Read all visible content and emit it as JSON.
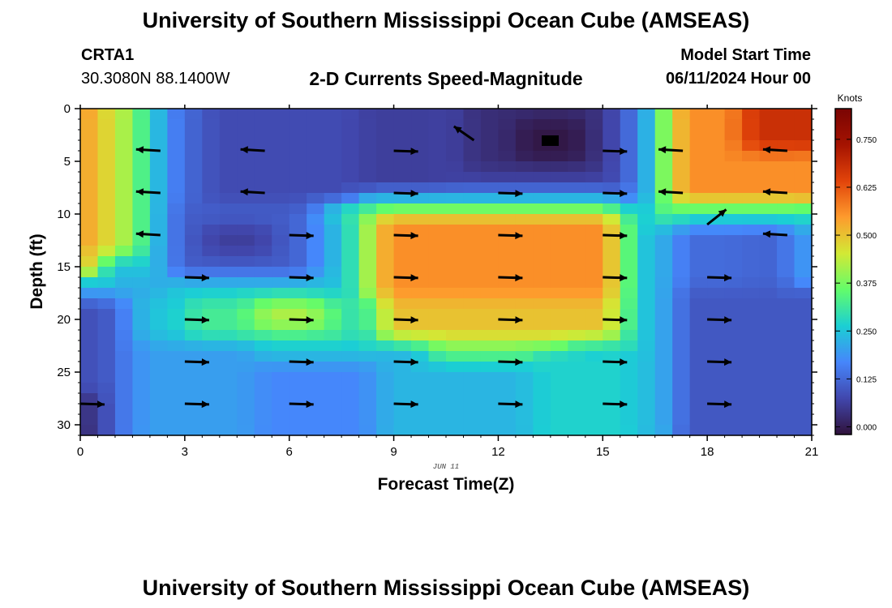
{
  "header": {
    "title": "University of Southern Mississippi Ocean Cube (AMSEAS)",
    "station": "CRTA1",
    "coords": "30.3080N  88.1400W",
    "subtitle": "2-D Currents Speed-Magnitude",
    "model_start_label": "Model Start Time",
    "model_start_value": "06/11/2024 Hour 00"
  },
  "footer": {
    "title": "University of Southern Mississippi Ocean Cube (AMSEAS)"
  },
  "colors": {
    "arrow": "#000000",
    "axis": "#000000"
  },
  "chart_data": {
    "type": "heatmap",
    "title": "2-D Currents Speed-Magnitude",
    "xlabel": "Forecast Time(Z)",
    "ylabel": "Depth (ft)",
    "xlim": [
      0,
      21
    ],
    "ylim": [
      0,
      31
    ],
    "y_inverted": true,
    "x_ticks": [
      "0",
      "3",
      "6",
      "9",
      "12",
      "15",
      "18",
      "21"
    ],
    "y_ticks": [
      "0",
      "5",
      "10",
      "15",
      "20",
      "25",
      "30"
    ],
    "date_annotation": "JUN 11",
    "colorbar": {
      "label": "Knots",
      "ticks": [
        "0.000",
        "0.125",
        "0.250",
        "0.375",
        "0.500",
        "0.625",
        "0.750"
      ],
      "range": [
        -0.02,
        0.83
      ],
      "stops": [
        "#30123b",
        "#4147ad",
        "#4686fb",
        "#1bcfd4",
        "#62fc6b",
        "#d2e935",
        "#fe9b2d",
        "#e2440a",
        "#a51301",
        "#7a0403"
      ]
    },
    "vectors": [
      {
        "t": 2.3,
        "d": 4,
        "dir": "W"
      },
      {
        "t": 5.3,
        "d": 4,
        "dir": "W"
      },
      {
        "t": 9.0,
        "d": 4,
        "dir": "E"
      },
      {
        "t": 11.3,
        "d": 3,
        "dir": "NW"
      },
      {
        "t": 15.0,
        "d": 4,
        "dir": "E"
      },
      {
        "t": 17.3,
        "d": 4,
        "dir": "W"
      },
      {
        "t": 20.3,
        "d": 4,
        "dir": "W"
      },
      {
        "t": 2.3,
        "d": 8,
        "dir": "W"
      },
      {
        "t": 5.3,
        "d": 8,
        "dir": "W"
      },
      {
        "t": 9.0,
        "d": 8,
        "dir": "E"
      },
      {
        "t": 12.0,
        "d": 8,
        "dir": "E"
      },
      {
        "t": 15.0,
        "d": 8,
        "dir": "E"
      },
      {
        "t": 17.3,
        "d": 8,
        "dir": "W"
      },
      {
        "t": 20.3,
        "d": 8,
        "dir": "W"
      },
      {
        "t": 2.3,
        "d": 12,
        "dir": "W"
      },
      {
        "t": 6.0,
        "d": 12,
        "dir": "E"
      },
      {
        "t": 9.0,
        "d": 12,
        "dir": "E"
      },
      {
        "t": 12.0,
        "d": 12,
        "dir": "E"
      },
      {
        "t": 15.0,
        "d": 12,
        "dir": "E"
      },
      {
        "t": 18.0,
        "d": 11,
        "dir": "NE"
      },
      {
        "t": 20.3,
        "d": 12,
        "dir": "W"
      },
      {
        "t": 3.0,
        "d": 16,
        "dir": "E"
      },
      {
        "t": 6.0,
        "d": 16,
        "dir": "E"
      },
      {
        "t": 9.0,
        "d": 16,
        "dir": "E"
      },
      {
        "t": 12.0,
        "d": 16,
        "dir": "E"
      },
      {
        "t": 15.0,
        "d": 16,
        "dir": "E"
      },
      {
        "t": 18.0,
        "d": 16,
        "dir": "E"
      },
      {
        "t": 3.0,
        "d": 20,
        "dir": "E"
      },
      {
        "t": 6.0,
        "d": 20,
        "dir": "E"
      },
      {
        "t": 9.0,
        "d": 20,
        "dir": "E"
      },
      {
        "t": 12.0,
        "d": 20,
        "dir": "E"
      },
      {
        "t": 15.0,
        "d": 20,
        "dir": "E"
      },
      {
        "t": 18.0,
        "d": 20,
        "dir": "E"
      },
      {
        "t": 3.0,
        "d": 24,
        "dir": "E"
      },
      {
        "t": 6.0,
        "d": 24,
        "dir": "E"
      },
      {
        "t": 9.0,
        "d": 24,
        "dir": "E"
      },
      {
        "t": 12.0,
        "d": 24,
        "dir": "E"
      },
      {
        "t": 15.0,
        "d": 24,
        "dir": "E"
      },
      {
        "t": 18.0,
        "d": 24,
        "dir": "E"
      },
      {
        "t": 0.0,
        "d": 28,
        "dir": "E"
      },
      {
        "t": 3.0,
        "d": 28,
        "dir": "E"
      },
      {
        "t": 6.0,
        "d": 28,
        "dir": "E"
      },
      {
        "t": 9.0,
        "d": 28,
        "dir": "E"
      },
      {
        "t": 12.0,
        "d": 28,
        "dir": "E"
      },
      {
        "t": 15.0,
        "d": 28,
        "dir": "E"
      },
      {
        "t": 18.0,
        "d": 28,
        "dir": "E"
      }
    ],
    "speed_field": {
      "background": 0.25,
      "regions": [
        {
          "t": [
            0.0,
            0.6
          ],
          "d": [
            0,
            16
          ],
          "v": 0.56
        },
        {
          "t": [
            0.6,
            1.3
          ],
          "d": [
            0,
            14
          ],
          "v": 0.45
        },
        {
          "t": [
            1.3,
            1.8
          ],
          "d": [
            0,
            14
          ],
          "v": 0.32
        },
        {
          "t": [
            1.8,
            2.6
          ],
          "d": [
            0,
            14
          ],
          "v": 0.24
        },
        {
          "t": [
            2.6,
            3.6
          ],
          "d": [
            0,
            9
          ],
          "v": 0.13
        },
        {
          "t": [
            3.6,
            7.8
          ],
          "d": [
            0,
            9
          ],
          "v": 0.08
        },
        {
          "t": [
            7.8,
            10.3
          ],
          "d": [
            0,
            8
          ],
          "v": 0.06
        },
        {
          "t": [
            2.6,
            7.0
          ],
          "d": [
            9,
            16
          ],
          "v": 0.11
        },
        {
          "t": [
            3.5,
            5.5
          ],
          "d": [
            11,
            14
          ],
          "v": 0.06
        },
        {
          "t": [
            6.4,
            7.0
          ],
          "d": [
            9,
            16
          ],
          "v": 0.16
        },
        {
          "t": [
            7.0,
            15.6
          ],
          "d": [
            9,
            10
          ],
          "v": 0.33
        },
        {
          "t": [
            7.8,
            15.6
          ],
          "d": [
            8,
            9
          ],
          "v": 0.26
        },
        {
          "t": [
            10.3,
            15.3
          ],
          "d": [
            0,
            8
          ],
          "v": 0.07
        },
        {
          "t": [
            11.0,
            15.0
          ],
          "d": [
            0,
            6
          ],
          "v": 0.03
        },
        {
          "t": [
            12.5,
            14.5
          ],
          "d": [
            1,
            5
          ],
          "v": -0.01
        },
        {
          "t": [
            15.3,
            16.0
          ],
          "d": [
            0,
            9
          ],
          "v": 0.12
        },
        {
          "t": [
            16.0,
            16.6
          ],
          "d": [
            0,
            9
          ],
          "v": 0.2
        },
        {
          "t": [
            16.6,
            17.2
          ],
          "d": [
            0,
            11
          ],
          "v": 0.38
        },
        {
          "t": [
            17.2,
            21.0
          ],
          "d": [
            0,
            9
          ],
          "v": 0.56
        },
        {
          "t": [
            19.0,
            21.0
          ],
          "d": [
            0,
            4
          ],
          "v": 0.68
        },
        {
          "t": [
            17.2,
            21.0
          ],
          "d": [
            9,
            11
          ],
          "v": 0.3
        },
        {
          "t": [
            17.2,
            19.2
          ],
          "d": [
            11,
            17
          ],
          "v": 0.13
        },
        {
          "t": [
            19.2,
            20.6
          ],
          "d": [
            11,
            17
          ],
          "v": 0.12
        },
        {
          "t": [
            20.6,
            21.0
          ],
          "d": [
            11,
            17
          ],
          "v": 0.22
        },
        {
          "t": [
            17.2,
            21.0
          ],
          "d": [
            17,
            31
          ],
          "v": 0.1
        },
        {
          "t": [
            8.3,
            15.6
          ],
          "d": [
            10,
            18
          ],
          "v": 0.56
        },
        {
          "t": [
            7.8,
            8.3
          ],
          "d": [
            10,
            18
          ],
          "v": 0.42
        },
        {
          "t": [
            8.3,
            15.6
          ],
          "d": [
            18,
            22
          ],
          "v": 0.5
        },
        {
          "t": [
            16.0,
            16.6
          ],
          "d": [
            9,
            31
          ],
          "v": 0.22
        },
        {
          "t": [
            15.6,
            16.0
          ],
          "d": [
            10,
            31
          ],
          "v": 0.3
        },
        {
          "t": [
            0.0,
            2.6
          ],
          "d": [
            16,
            18
          ],
          "v": 0.22
        },
        {
          "t": [
            2.6,
            7.8
          ],
          "d": [
            16,
            18
          ],
          "v": 0.25
        },
        {
          "t": [
            3.0,
            7.8
          ],
          "d": [
            18,
            22
          ],
          "v": 0.32
        },
        {
          "t": [
            5.0,
            7.0
          ],
          "d": [
            18,
            21
          ],
          "v": 0.42
        },
        {
          "t": [
            0.0,
            0.8
          ],
          "d": [
            18,
            31
          ],
          "v": 0.09
        },
        {
          "t": [
            0.0,
            0.3
          ],
          "d": [
            27,
            31
          ],
          "v": 0.02
        },
        {
          "t": [
            0.8,
            1.6
          ],
          "d": [
            18,
            31
          ],
          "v": 0.15
        },
        {
          "t": [
            1.6,
            5.0
          ],
          "d": [
            22,
            31
          ],
          "v": 0.2
        },
        {
          "t": [
            5.0,
            8.5
          ],
          "d": [
            24,
            31
          ],
          "v": 0.17
        },
        {
          "t": [
            8.5,
            13.0
          ],
          "d": [
            23,
            31
          ],
          "v": 0.23
        },
        {
          "t": [
            10.0,
            14.0
          ],
          "d": [
            22,
            24
          ],
          "v": 0.36
        },
        {
          "t": [
            13.0,
            16.0
          ],
          "d": [
            23,
            31
          ],
          "v": 0.27
        }
      ]
    }
  }
}
